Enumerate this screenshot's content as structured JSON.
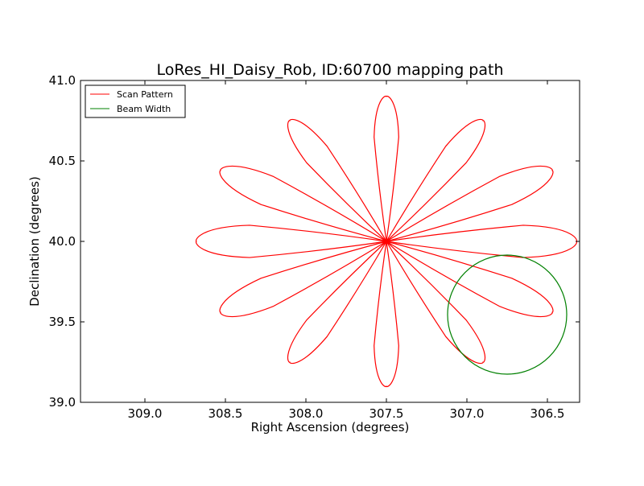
{
  "chart_data": {
    "type": "line",
    "title": "LoRes_HI_Daisy_Rob, ID:60700 mapping path",
    "xlabel": "Right Ascension (degrees)",
    "ylabel": "Declination (degrees)",
    "xlim": [
      309.4,
      306.3
    ],
    "ylim": [
      39.0,
      41.0
    ],
    "x_inverted": true,
    "x_ticks": [
      309.0,
      308.5,
      308.0,
      307.5,
      307.0,
      306.5
    ],
    "x_tick_labels": [
      "309.0",
      "308.5",
      "308.0",
      "307.5",
      "307.0",
      "306.5"
    ],
    "y_ticks": [
      39.0,
      39.5,
      40.0,
      40.5,
      41.0
    ],
    "y_tick_labels": [
      "39.0",
      "39.5",
      "40.0",
      "40.5",
      "41.0"
    ],
    "grid": false,
    "legend_position": "top-left",
    "series": [
      {
        "name": "Scan Pattern",
        "color": "#ff0000",
        "kind": "daisy",
        "center": [
          307.5,
          40.0
        ],
        "petal_tip_angles_deg": [
          0,
          30,
          60,
          90,
          120,
          150,
          180,
          210,
          240,
          270,
          300,
          330
        ],
        "petal_tip_offsets": [
          {
            "ra": -1.18,
            "dec": 0.0
          },
          {
            "ra": -1.03,
            "dec": 0.44
          },
          {
            "ra": -0.6,
            "dec": 0.75
          },
          {
            "ra": 0.0,
            "dec": 0.9
          },
          {
            "ra": 0.6,
            "dec": 0.75
          },
          {
            "ra": 1.03,
            "dec": 0.44
          },
          {
            "ra": 1.18,
            "dec": 0.0
          },
          {
            "ra": 1.03,
            "dec": -0.44
          },
          {
            "ra": 0.6,
            "dec": -0.75
          },
          {
            "ra": 0.0,
            "dec": -0.9
          },
          {
            "ra": -0.6,
            "dec": -0.75
          },
          {
            "ra": -1.03,
            "dec": -0.44
          }
        ]
      },
      {
        "name": "Beam Width",
        "color": "#008000",
        "kind": "circle",
        "center": [
          306.75,
          39.545
        ],
        "radius_ra": 0.37,
        "radius_dec": 0.37
      }
    ]
  }
}
